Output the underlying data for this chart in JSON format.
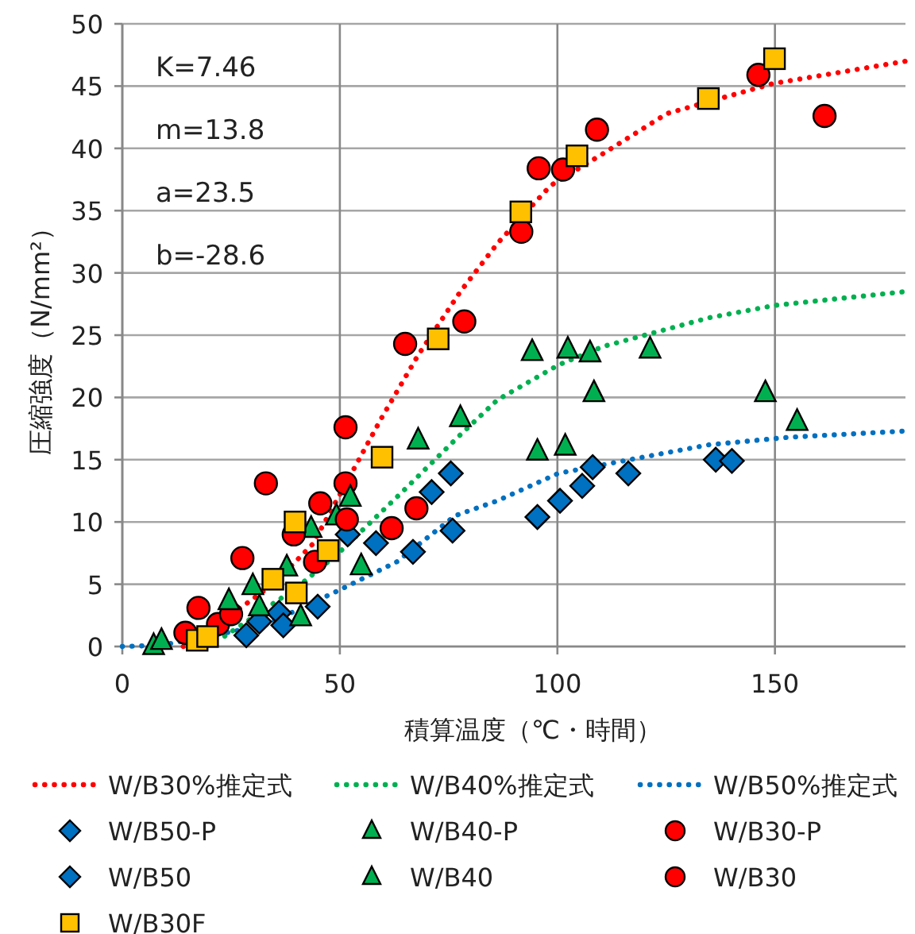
{
  "chart_data": {
    "type": "scatter",
    "xlabel": "積算温度（℃・時間）",
    "ylabel": "圧縮強度（N/mm²）",
    "xlim": [
      0,
      180
    ],
    "xticks": [
      0,
      50,
      100,
      150
    ],
    "ylim": [
      0,
      50
    ],
    "yticks": [
      0,
      5,
      10,
      15,
      20,
      25,
      30,
      35,
      40,
      45,
      50
    ],
    "grid": true,
    "legend": "bottom",
    "annotations": [
      "K=7.46",
      "m=13.8",
      "a=23.5",
      "b=-28.6"
    ],
    "series": [
      {
        "name": "W/B30%推定式",
        "type": "line",
        "line_style": "dotted",
        "marker": "none",
        "color": "#ff0000",
        "x": [
          14,
          18.6,
          35,
          43.7,
          52.2,
          59.5,
          68,
          77.7,
          86.3,
          98.4,
          110.6,
          125.2,
          149.5,
          180
        ],
        "values": [
          0,
          0.9,
          5.1,
          8.2,
          13.6,
          18.3,
          23.4,
          28.5,
          32.4,
          37.0,
          39.6,
          42.8,
          45.2,
          47.0
        ]
      },
      {
        "name": "W/B40%推定式",
        "type": "line",
        "line_style": "dotted",
        "marker": "none",
        "color": "#00b050",
        "x": [
          15,
          23,
          40,
          49.7,
          64.3,
          77.1,
          86.2,
          100.2,
          110.6,
          134.9,
          150.1,
          180
        ],
        "values": [
          0,
          0.7,
          4.7,
          7.5,
          12.4,
          16.8,
          19.8,
          22.6,
          24.1,
          26.4,
          27.4,
          28.5
        ]
      },
      {
        "name": "W/B50%推定式",
        "type": "line",
        "line_style": "dotted",
        "marker": "none",
        "color": "#0070c0",
        "x": [
          0,
          9,
          32.7,
          49.7,
          63.1,
          76.5,
          86.2,
          100.2,
          116.6,
          134.9,
          153.1,
          180
        ],
        "values": [
          0,
          0.1,
          1.7,
          4.5,
          6.8,
          10.5,
          11.7,
          13.9,
          15.0,
          16.2,
          16.8,
          17.3
        ]
      },
      {
        "name": "W/B50-P",
        "marker": "diamond",
        "color": "#0070c0",
        "x": [
          31.5,
          36,
          51.8,
          71.1,
          75.5,
          95.4,
          100.6,
          105.7,
          136.4,
          140.1
        ],
        "values": [
          2.0,
          2.7,
          9.0,
          12.4,
          13.9,
          10.4,
          11.7,
          12.9,
          15.0,
          14.9
        ]
      },
      {
        "name": "W/B40-P",
        "marker": "triangle",
        "color": "#00b050",
        "x": [
          37.8,
          43.4,
          49.2,
          54.9,
          94.2,
          102.4,
          108.4,
          95.4,
          101.8,
          147.8,
          155.1
        ],
        "values": [
          6.4,
          9.5,
          10.5,
          6.5,
          23.7,
          23.9,
          20.4,
          15.7,
          16.1,
          20.4,
          18.1
        ]
      },
      {
        "name": "W/B30-P",
        "marker": "circle",
        "color": "#ff0000",
        "x": [
          14.5,
          17.5,
          22,
          25,
          27.6,
          33,
          51.3,
          51.3,
          61.9,
          67.6,
          91.7,
          101.3
        ],
        "values": [
          1.1,
          3.1,
          1.8,
          2.6,
          7.1,
          13.1,
          17.6,
          13.1,
          9.5,
          11.1,
          33.3,
          38.3
        ]
      },
      {
        "name": "W/B50",
        "marker": "diamond",
        "color": "#0070c0",
        "x": [
          28.5,
          37,
          44.9,
          58.3,
          66.8,
          75.9,
          108.1,
          116.3
        ],
        "values": [
          0.9,
          1.7,
          3.2,
          8.3,
          7.6,
          9.3,
          14.4,
          13.9
        ]
      },
      {
        "name": "W/B40",
        "marker": "triangle",
        "color": "#00b050",
        "x": [
          7.2,
          9,
          24.5,
          30,
          31.5,
          41,
          52.4,
          68,
          77.7,
          107.5,
          121.3
        ],
        "values": [
          0.1,
          0.5,
          3.7,
          4.9,
          3.2,
          2.4,
          12.0,
          16.6,
          18.4,
          23.6,
          23.9
        ]
      },
      {
        "name": "W/B30",
        "marker": "circle",
        "color": "#ff0000",
        "x": [
          39.4,
          44.3,
          45.5,
          51.6,
          65,
          78.6,
          95.7,
          109.1,
          146.2,
          161.4
        ],
        "values": [
          9.0,
          6.8,
          11.5,
          10.2,
          24.3,
          26.1,
          38.4,
          41.5,
          45.9,
          42.6
        ]
      },
      {
        "name": "W/B30F",
        "marker": "square",
        "color": "#ffc000",
        "x": [
          17.2,
          19.6,
          34.6,
          39.7,
          40,
          47.3,
          59.7,
          72.6,
          91.6,
          104.5,
          134.7,
          149.9
        ],
        "values": [
          0.5,
          0.8,
          5.4,
          10.0,
          4.3,
          7.7,
          15.2,
          24.7,
          34.9,
          39.4,
          44.0,
          47.2
        ]
      }
    ]
  }
}
